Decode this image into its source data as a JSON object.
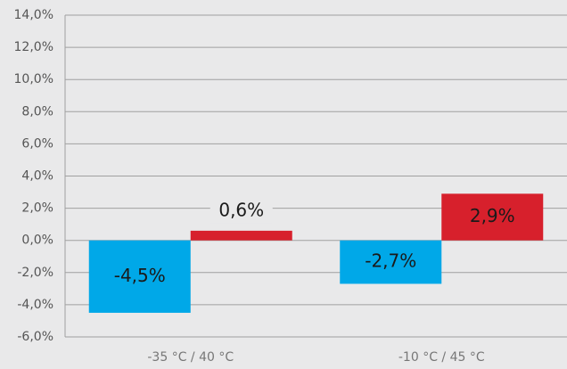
{
  "chart_data": {
    "type": "bar",
    "categories": [
      "-35 °C / 40 °C",
      "-10 °C / 45 °C"
    ],
    "series": [
      {
        "color": "#00a8e8",
        "values": [
          -4.5,
          -2.7
        ],
        "value_labels": [
          "-4,5%",
          "-2,7%"
        ]
      },
      {
        "color": "#d7202c",
        "values": [
          0.6,
          2.9
        ],
        "value_labels": [
          "0,6%",
          "2,9%"
        ]
      }
    ],
    "ylim": [
      -6,
      14
    ],
    "yticks": [
      {
        "value": -6,
        "label": "-6,0%"
      },
      {
        "value": -4,
        "label": "-4,0%"
      },
      {
        "value": -2,
        "label": "-2,0%"
      },
      {
        "value": 0,
        "label": "0,0%"
      },
      {
        "value": 2,
        "label": "2,0%"
      },
      {
        "value": 4,
        "label": "4,0%"
      },
      {
        "value": 6,
        "label": "6,0%"
      },
      {
        "value": 8,
        "label": "8,0%"
      },
      {
        "value": 10,
        "label": "10,0%"
      },
      {
        "value": 12,
        "label": "12,0%"
      },
      {
        "value": 14,
        "label": "14,0%"
      }
    ],
    "grid": true
  }
}
